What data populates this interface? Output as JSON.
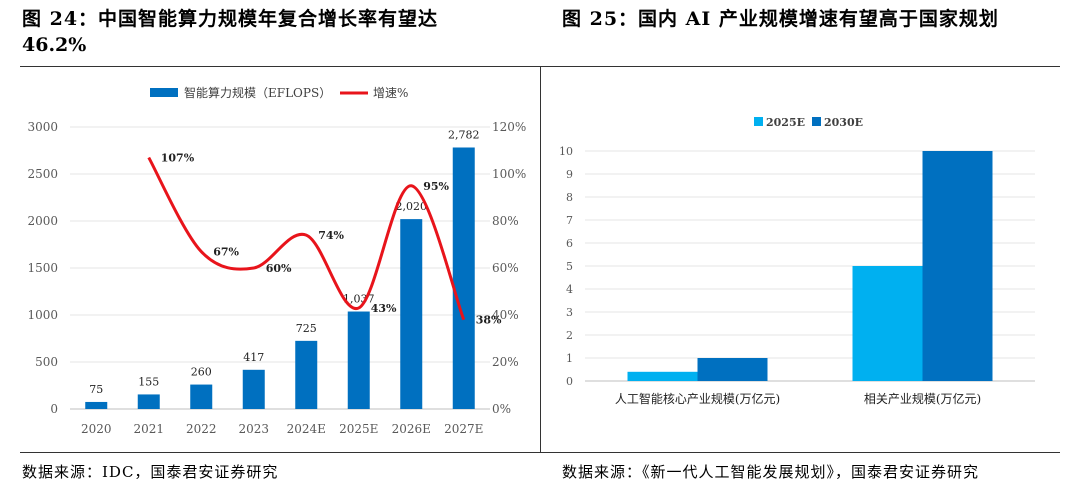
{
  "figures": {
    "left_title_line1": "图 24：中国智能算力规模年复合增长率有望达",
    "left_title_line2": "46.2%",
    "right_title": "图 25：国内 AI 产业规模增速有望高于国家规划",
    "left_source": "数据来源：IDC，国泰君安证券研究",
    "right_source": "数据来源：《新一代人工智能发展规划》，国泰君安证券研究"
  },
  "chart_data": [
    {
      "type": "bar+line",
      "categories": [
        "2020",
        "2021",
        "2022",
        "2023",
        "2024E",
        "2025E",
        "2026E",
        "2027E"
      ],
      "series": [
        {
          "name": "智能算力规模（EFLOPS）",
          "axis": "left",
          "values": [
            75,
            155,
            260,
            417,
            725,
            1037,
            2020,
            2782
          ],
          "labels": [
            "75",
            "155",
            "260",
            "417",
            "725",
            "1,037",
            "2,020",
            "2,782"
          ],
          "color": "#0070c0"
        },
        {
          "name": "增速%",
          "axis": "right",
          "values": [
            null,
            107,
            67,
            60,
            74,
            43,
            95,
            38
          ],
          "labels": [
            "",
            "107%",
            "67%",
            "60%",
            "74%",
            "43%",
            "95%",
            "38%"
          ],
          "color": "#e8141b"
        }
      ],
      "ylim_left": [
        0,
        3000
      ],
      "yticks_left": [
        "0",
        "500",
        "1000",
        "1500",
        "2000",
        "2500",
        "3000"
      ],
      "ylim_right": [
        0,
        120
      ],
      "yticks_right": [
        "0%",
        "20%",
        "40%",
        "60%",
        "80%",
        "100%",
        "120%"
      ],
      "legend": "top-center",
      "grid": true
    },
    {
      "type": "bar",
      "categories": [
        "人工智能核心产业规模(万亿元)",
        "相关产业规模(万亿元)"
      ],
      "series": [
        {
          "name": "2025E",
          "values": [
            0.4,
            5
          ],
          "color": "#00b0f0"
        },
        {
          "name": "2030E",
          "values": [
            1,
            10
          ],
          "color": "#0070c0"
        }
      ],
      "ylim": [
        0,
        10
      ],
      "yticks": [
        "0",
        "1",
        "2",
        "3",
        "4",
        "5",
        "6",
        "7",
        "8",
        "9",
        "10"
      ],
      "legend": "top-center",
      "grid": true
    }
  ]
}
